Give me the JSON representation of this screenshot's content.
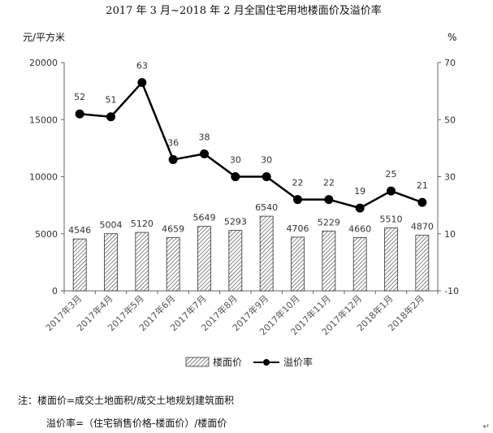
{
  "chart_data": {
    "type": "bar+line",
    "title": "2017 年 3 月~2018 年 2 月全国住宅用地楼面价及溢价率",
    "categories": [
      "2017年3月",
      "2017年4月",
      "2017年5月",
      "2017年6月",
      "2017年7月",
      "2017年8月",
      "2017年9月",
      "2017年10月",
      "2017年11月",
      "2017年12月",
      "2018年1月",
      "2018年2月"
    ],
    "series": [
      {
        "name": "楼面价",
        "type": "bar",
        "axis": "left",
        "pattern": "diagonal-hatch",
        "values": [
          4546,
          5004,
          5120,
          4659,
          5649,
          5293,
          6540,
          4706,
          5229,
          4660,
          5510,
          4870
        ]
      },
      {
        "name": "溢价率",
        "type": "line",
        "axis": "right",
        "color": "#000000",
        "values": [
          52,
          51,
          63,
          36,
          38,
          30,
          30,
          22,
          22,
          19,
          25,
          21
        ]
      }
    ],
    "y_left": {
      "unit_label": "元/平方米",
      "ylim": [
        0,
        20000
      ],
      "ticks": [
        0,
        5000,
        10000,
        15000,
        20000
      ]
    },
    "y_right": {
      "unit_label": "%",
      "ylim": [
        -10,
        70
      ],
      "ticks": [
        -10,
        10,
        30,
        50,
        70
      ]
    },
    "grid": false,
    "legend": {
      "position": "bottom"
    }
  },
  "notes": {
    "line1": "注：楼面价=成交土地面积/成交土地规划建筑面积",
    "line2": "溢价率=（住宅销售价格-楼面价）/楼面价"
  },
  "corner_mark": "↵"
}
